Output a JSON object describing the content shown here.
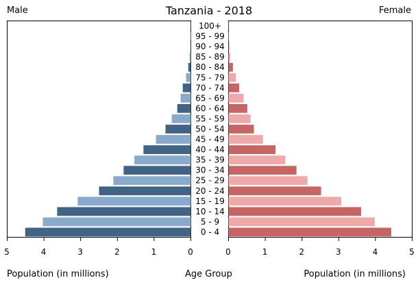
{
  "chart_data": {
    "type": "bar",
    "title": "Tanzania - 2018",
    "left_label": "Male",
    "right_label": "Female",
    "xlabel_left": "Population (in millions)",
    "xlabel_center": "Age Group",
    "xlabel_right": "Population (in millions)",
    "xlim": [
      0,
      5
    ],
    "x_ticks": [
      "5",
      "4",
      "3",
      "2",
      "1",
      "0"
    ],
    "x_ticks_right": [
      "0",
      "1",
      "2",
      "3",
      "4",
      "5"
    ],
    "grid": false,
    "categories": [
      "100+",
      "95 - 99",
      "90 - 94",
      "85 - 89",
      "80 - 84",
      "75 - 79",
      "70 - 74",
      "65 - 69",
      "60 - 64",
      "55 - 59",
      "50 - 54",
      "45 - 49",
      "40 - 44",
      "35 - 39",
      "30 - 34",
      "25 - 29",
      "20 - 24",
      "15 - 19",
      "10 - 14",
      "5 - 9",
      "0 - 4"
    ],
    "series": [
      {
        "name": "Male",
        "side": "left",
        "colors": [
          "#416386",
          "#8aaacc"
        ],
        "values": [
          0.002,
          0.005,
          0.012,
          0.035,
          0.07,
          0.13,
          0.22,
          0.28,
          0.37,
          0.52,
          0.69,
          0.95,
          1.29,
          1.54,
          1.83,
          2.11,
          2.5,
          3.08,
          3.64,
          4.03,
          4.51
        ]
      },
      {
        "name": "Female",
        "side": "right",
        "colors": [
          "#c76564",
          "#f0a9a9"
        ],
        "values": [
          0.003,
          0.008,
          0.018,
          0.05,
          0.12,
          0.2,
          0.29,
          0.41,
          0.51,
          0.6,
          0.69,
          0.94,
          1.28,
          1.55,
          1.85,
          2.15,
          2.52,
          3.07,
          3.61,
          3.98,
          4.43
        ]
      }
    ]
  }
}
